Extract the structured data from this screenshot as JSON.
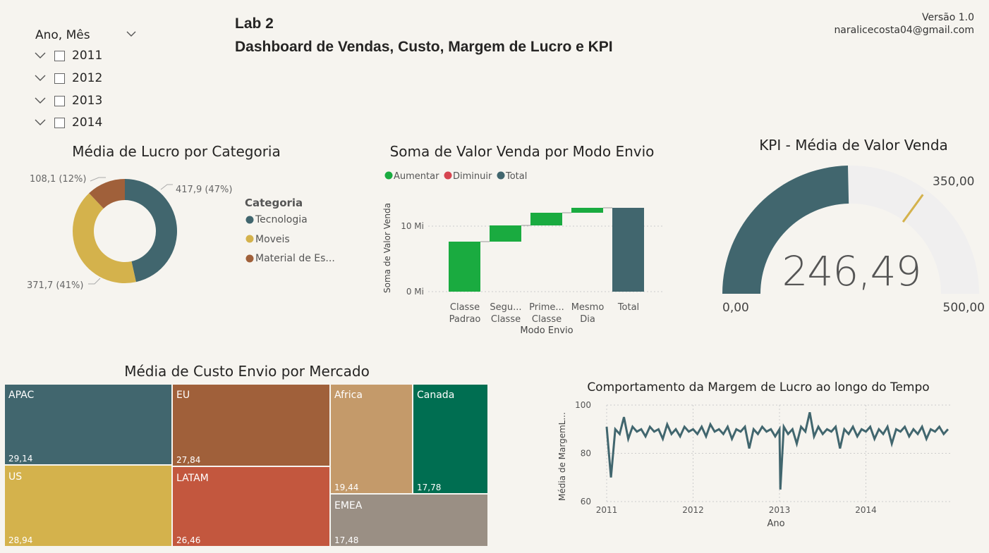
{
  "header": {
    "lab": "Lab 2",
    "subtitle": "Dashboard de Vendas, Custo, Margem de Lucro e KPI",
    "version": "Versão 1.0",
    "email": "naralicecosta04@gmail.com"
  },
  "slicer": {
    "title": "Ano, Mês",
    "items": [
      {
        "label": "2011",
        "checked": false
      },
      {
        "label": "2012",
        "checked": false
      },
      {
        "label": "2013",
        "checked": false
      },
      {
        "label": "2014",
        "checked": false
      }
    ]
  },
  "donut": {
    "title": "Média de Lucro por Categoria",
    "legend_title": "Categoria",
    "slices": [
      {
        "name": "Tecnologia",
        "label": "417,9 (47%)",
        "value": 417.9,
        "color": "#41666e"
      },
      {
        "name": "Moveis",
        "label": "371,7 (41%)",
        "value": 371.7,
        "color": "#d4b24c"
      },
      {
        "name": "Material de Es...",
        "label": "108,1 (12%)",
        "value": 108.1,
        "color": "#a0603a"
      }
    ]
  },
  "waterfall": {
    "title": "Soma de Valor Venda por Modo Envio",
    "legend": [
      {
        "name": "Aumentar",
        "color": "#1aab40"
      },
      {
        "name": "Diminuir",
        "color": "#d64550"
      },
      {
        "name": "Total",
        "color": "#41666e"
      }
    ],
    "ylabel": "Soma de Valor Venda",
    "xlabel": "Modo Envio",
    "yticks": [
      "10 Mi",
      "0 Mi"
    ],
    "categories": [
      {
        "line1": "Classe",
        "line2": "Padrao"
      },
      {
        "line1": "Segu...",
        "line2": "Classe"
      },
      {
        "line1": "Prime...",
        "line2": "Classe"
      },
      {
        "line1": "Mesmo",
        "line2": "Dia"
      },
      {
        "line1": "Total",
        "line2": ""
      }
    ]
  },
  "gauge": {
    "title": "KPI - Média de Valor Venda",
    "value_label": "246,49",
    "min_label": "0,00",
    "max_label": "500,00",
    "target_label": "350,00",
    "value": 246.49,
    "min": 0,
    "max": 500,
    "target": 350,
    "fill_color": "#41666e",
    "track_color": "#f0efef",
    "target_color": "#d4b24c"
  },
  "treemap": {
    "title": "Média de Custo Envio por Mercado",
    "tiles": [
      {
        "name": "APAC",
        "value": "29,14",
        "color": "#41666e"
      },
      {
        "name": "US",
        "value": "28,94",
        "color": "#d4b24c"
      },
      {
        "name": "EU",
        "value": "27,84",
        "color": "#a0603a"
      },
      {
        "name": "LATAM",
        "value": "26,46",
        "color": "#c3573e"
      },
      {
        "name": "Africa",
        "value": "19,44",
        "color": "#c49a6a"
      },
      {
        "name": "EMEA",
        "value": "17,48",
        "color": "#9a8f84"
      },
      {
        "name": "Canada",
        "value": "17,78",
        "color": "#006e51"
      }
    ]
  },
  "chart_data": {
    "type": "line",
    "title": "Comportamento da Margem de Lucro ao longo do Tempo",
    "xlabel": "Ano",
    "ylabel": "Média de MargemL...",
    "xticks": [
      "2011",
      "2012",
      "2013",
      "2014"
    ],
    "yticks": [
      "100",
      "80",
      "60"
    ],
    "ylim": [
      60,
      100
    ],
    "xlim": [
      2011,
      2015
    ],
    "grid": true,
    "series_color": "#41666e",
    "series": [
      {
        "x": [
          2011.0,
          2011.05,
          2011.1,
          2011.15,
          2011.2,
          2011.25,
          2011.3,
          2011.35,
          2011.4,
          2011.45,
          2011.5,
          2011.55,
          2011.6,
          2011.65,
          2011.7,
          2011.75,
          2011.8,
          2011.85,
          2011.9,
          2011.95,
          2012.0,
          2012.05,
          2012.1,
          2012.15,
          2012.2,
          2012.25,
          2012.3,
          2012.35,
          2012.4,
          2012.45,
          2012.5,
          2012.55,
          2012.6,
          2012.65,
          2012.7,
          2012.75,
          2012.8,
          2012.85,
          2012.9,
          2012.95,
          2013.0,
          2013.01,
          2013.05,
          2013.1,
          2013.15,
          2013.2,
          2013.25,
          2013.3,
          2013.35,
          2013.4,
          2013.45,
          2013.5,
          2013.55,
          2013.6,
          2013.65,
          2013.7,
          2013.75,
          2013.8,
          2013.85,
          2013.9,
          2013.95,
          2014.0,
          2014.05,
          2014.1,
          2014.15,
          2014.2,
          2014.25,
          2014.3,
          2014.35,
          2014.4,
          2014.45,
          2014.5,
          2014.55,
          2014.6,
          2014.65,
          2014.7,
          2014.75,
          2014.8,
          2014.85,
          2014.9,
          2014.95
        ],
        "y": [
          91,
          70,
          90,
          88,
          95,
          86,
          91,
          89,
          90,
          87,
          91,
          89,
          90,
          86,
          92,
          88,
          90,
          87,
          91,
          89,
          90,
          88,
          91,
          87,
          92,
          89,
          90,
          88,
          91,
          86,
          90,
          89,
          91,
          82,
          90,
          88,
          91,
          89,
          90,
          87,
          90,
          65,
          91,
          88,
          90,
          84,
          91,
          89,
          97,
          87,
          91,
          88,
          90,
          89,
          91,
          82,
          90,
          88,
          91,
          87,
          90,
          89,
          91,
          86,
          90,
          88,
          91,
          84,
          90,
          89,
          91,
          87,
          90,
          88,
          91,
          86,
          90,
          89,
          91,
          88,
          90
        ]
      }
    ]
  }
}
